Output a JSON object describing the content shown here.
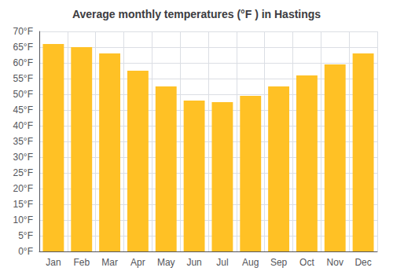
{
  "chart_data": {
    "type": "bar",
    "title": "Average monthly temperatures (°F ) in Hastings",
    "categories": [
      "Jan",
      "Feb",
      "Mar",
      "Apr",
      "May",
      "Jun",
      "Jul",
      "Aug",
      "Sep",
      "Oct",
      "Nov",
      "Dec"
    ],
    "values": [
      66,
      65,
      63,
      57.5,
      52.5,
      48,
      47.5,
      49.5,
      52.5,
      56,
      59.5,
      63
    ],
    "color": "#FFC125",
    "ylim": [
      0,
      70
    ],
    "yticks": [
      {
        "value": 0,
        "label": "0°F"
      },
      {
        "value": 5,
        "label": "5°F"
      },
      {
        "value": 10,
        "label": "10°F"
      },
      {
        "value": 15,
        "label": "15°F"
      },
      {
        "value": 20,
        "label": "20°F"
      },
      {
        "value": 25,
        "label": "25°F"
      },
      {
        "value": 30,
        "label": "30°F"
      },
      {
        "value": 35,
        "label": "35°F"
      },
      {
        "value": 40,
        "label": "40°F"
      },
      {
        "value": 45,
        "label": "45°F"
      },
      {
        "value": 50,
        "label": "50°F"
      },
      {
        "value": 55,
        "label": "55°F"
      },
      {
        "value": 60,
        "label": "60°F"
      },
      {
        "value": 65,
        "label": "65°F"
      },
      {
        "value": 70,
        "label": "70°F"
      }
    ],
    "grid": true
  }
}
